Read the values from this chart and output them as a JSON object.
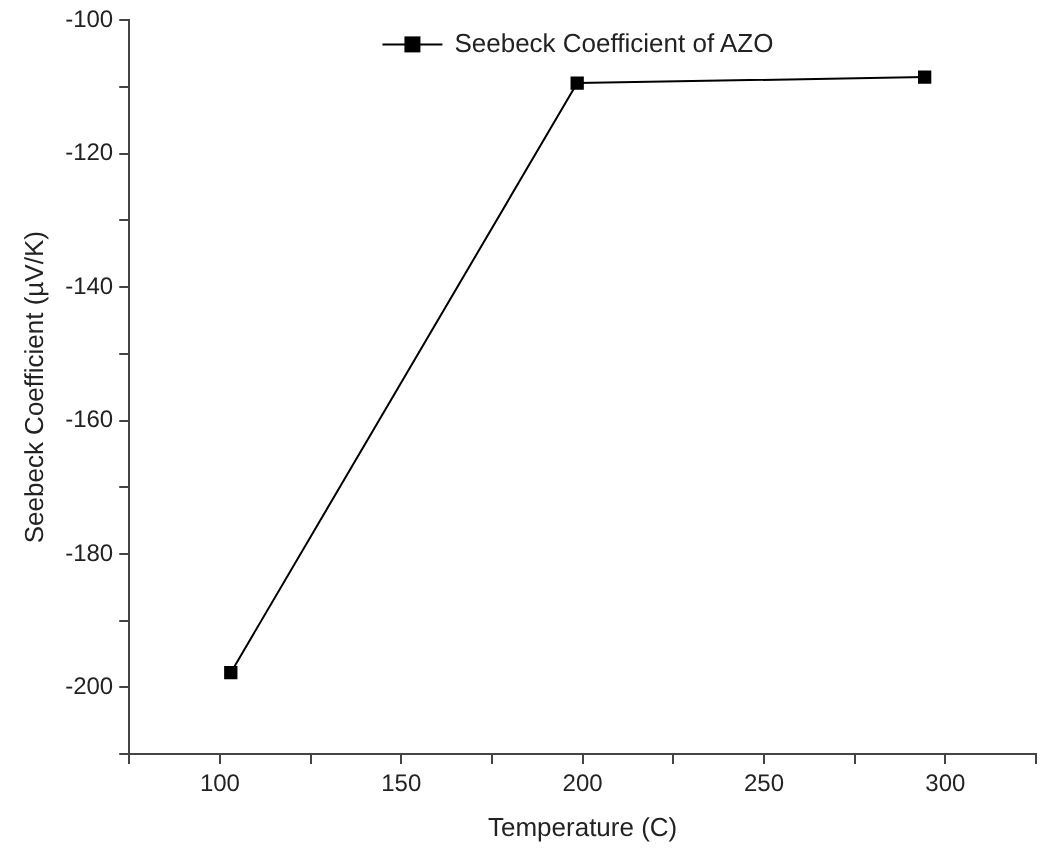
{
  "chart_data": {
    "type": "line",
    "xlabel": "Temperature (C)",
    "ylabel": "Seebeck Coefficient (µV/K)",
    "x": [
      103,
      198.5,
      294.3
    ],
    "series": [
      {
        "name": "Seebeck Coefficient of AZO",
        "color": "#000000",
        "values": [
          -197.8,
          -109.4,
          -108.5
        ]
      }
    ],
    "xlim": [
      75,
      325
    ],
    "xticks": [
      {
        "value": 75,
        "label": null
      },
      100,
      {
        "value": 125,
        "label": null
      },
      150,
      {
        "value": 175,
        "label": null
      },
      200,
      {
        "value": 225,
        "label": null
      },
      250,
      {
        "value": 275,
        "label": null
      },
      300,
      {
        "value": 325,
        "label": null
      }
    ],
    "ylim": [
      -210,
      -100
    ],
    "yticks": [
      -100,
      {
        "value": -110,
        "label": null
      },
      -120,
      {
        "value": -130,
        "label": null
      },
      -140,
      {
        "value": -150,
        "label": null
      },
      -160,
      {
        "value": -170,
        "label": null
      },
      -180,
      {
        "value": -190,
        "label": null
      },
      -200,
      {
        "value": -210,
        "label": null
      }
    ],
    "grid": false,
    "legend": "top",
    "marker": "square",
    "line_style": "solid"
  }
}
